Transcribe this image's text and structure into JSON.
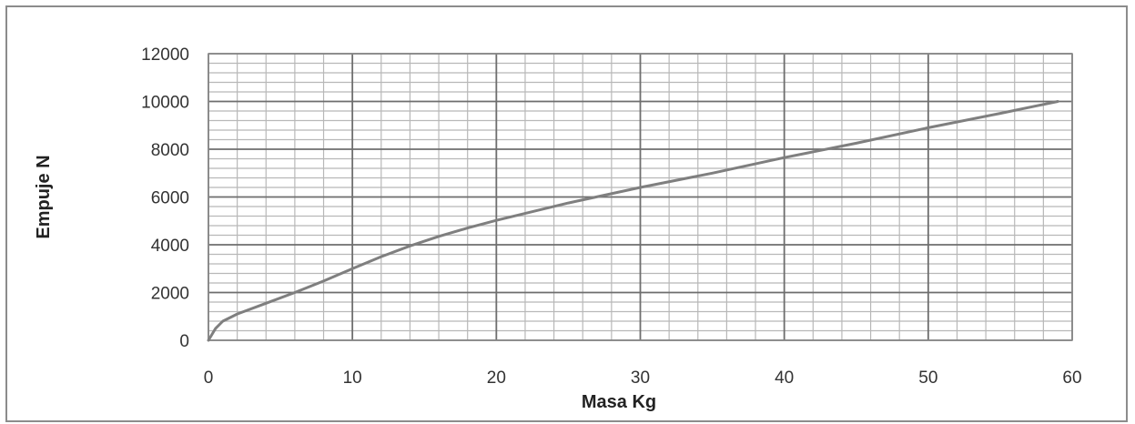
{
  "chart_data": {
    "type": "line",
    "title": "",
    "xlabel": "Masa Kg",
    "ylabel": "Empuje N",
    "xlim": [
      0,
      60
    ],
    "ylim": [
      0,
      12000
    ],
    "x_ticks": [
      "0",
      "10",
      "20",
      "30",
      "40",
      "50",
      "60"
    ],
    "y_ticks": [
      "0",
      "2000",
      "4000",
      "6000",
      "8000",
      "10000",
      "12000"
    ],
    "grid": true,
    "legend": "none",
    "line_color": "#7f7f7f",
    "series": [
      {
        "x": [
          0,
          0.5,
          1,
          2,
          4,
          6,
          8,
          10,
          12,
          14,
          16,
          18,
          20,
          25,
          30,
          35,
          40,
          45,
          50,
          55,
          59
        ],
        "y": [
          0,
          500,
          800,
          1100,
          1550,
          2000,
          2480,
          3000,
          3500,
          3950,
          4350,
          4700,
          5020,
          5750,
          6400,
          7000,
          7650,
          8250,
          8900,
          9500,
          10000
        ]
      }
    ]
  }
}
